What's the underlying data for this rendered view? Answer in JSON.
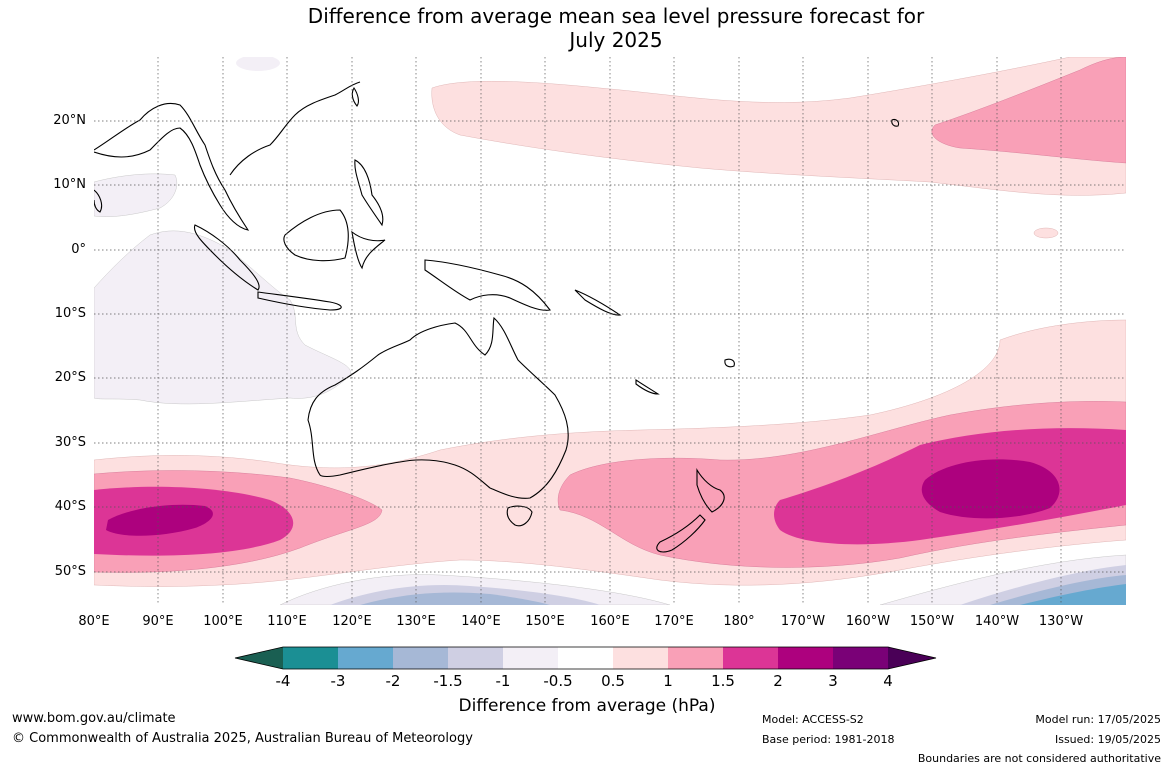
{
  "title_line1": "Difference from average mean sea level pressure forecast for",
  "title_line2": "July 2025",
  "lat_labels": [
    "20°N",
    "10°N",
    "0°",
    "10°S",
    "20°S",
    "30°S",
    "40°S",
    "50°S"
  ],
  "lon_labels": [
    "80°E",
    "90°E",
    "100°E",
    "110°E",
    "120°E",
    "130°E",
    "140°E",
    "150°E",
    "160°E",
    "170°E",
    "180°",
    "170°W",
    "160°W",
    "150°W",
    "140°W",
    "130°W"
  ],
  "colorbar": {
    "title": "Difference from average (hPa)",
    "ticks": [
      "-4",
      "-3",
      "-2",
      "-1.5",
      "-1",
      "-0.5",
      "0.5",
      "1",
      "1.5",
      "2",
      "3",
      "4"
    ],
    "colors": [
      "#1a5f52",
      "#1b8f94",
      "#66a9d0",
      "#a6b8d6",
      "#cfcfe3",
      "#f3eff6",
      "#ffffff",
      "#fde0e0",
      "#f9a0b7",
      "#dc3596",
      "#ad017e",
      "#7a0177",
      "#4a0057"
    ]
  },
  "footer": {
    "website": "www.bom.gov.au/climate",
    "copyright": "© Commonwealth of Australia 2025, Australian Bureau of Meteorology",
    "model": "Model: ACCESS-S2",
    "base_period": "Base period: 1981-2018",
    "model_run": "Model run: 17/05/2025",
    "issued": "Issued: 19/05/2025",
    "disclaimer": "Boundaries are not considered authoritative"
  }
}
